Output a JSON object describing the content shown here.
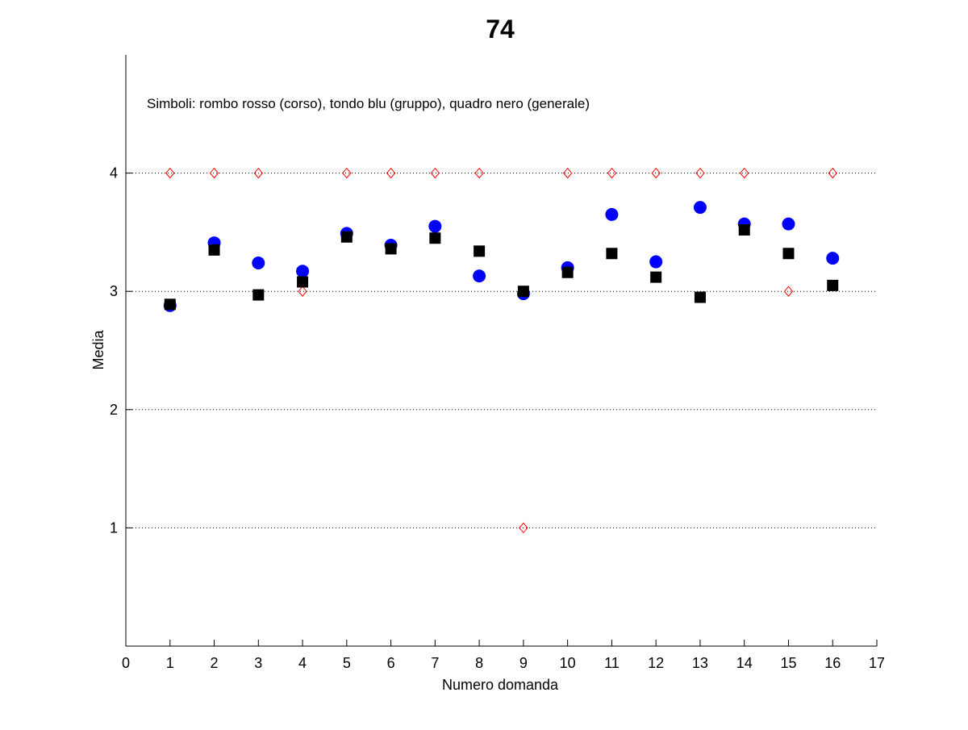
{
  "chart_data": {
    "type": "scatter",
    "title": "74",
    "xlabel": "Numero domanda",
    "ylabel": "Media",
    "xlim": [
      0,
      17
    ],
    "ylim": [
      0,
      5
    ],
    "xticks": [
      "0",
      "1",
      "2",
      "3",
      "4",
      "5",
      "6",
      "7",
      "8",
      "9",
      "10",
      "11",
      "12",
      "13",
      "14",
      "15",
      "16",
      "17"
    ],
    "yticks": [
      "1",
      "2",
      "3",
      "4"
    ],
    "grid": "horizontal dotted at y ticks",
    "annotation": "Simboli: rombo rosso (corso), tondo blu (gruppo), quadro nero (generale)",
    "x": [
      1,
      2,
      3,
      4,
      5,
      6,
      7,
      8,
      9,
      10,
      11,
      12,
      13,
      14,
      15,
      16
    ],
    "series": [
      {
        "name": "corso",
        "marker": "diamond",
        "color": "#ff0000",
        "values": [
          4,
          4,
          4,
          3,
          4,
          4,
          4,
          4,
          1,
          4,
          4,
          4,
          4,
          4,
          3,
          4
        ]
      },
      {
        "name": "gruppo",
        "marker": "circle",
        "color": "#0000ff",
        "values": [
          2.88,
          3.41,
          3.24,
          3.17,
          3.49,
          3.39,
          3.55,
          3.13,
          2.98,
          3.2,
          3.65,
          3.25,
          3.71,
          3.57,
          3.57,
          3.28
        ]
      },
      {
        "name": "generale",
        "marker": "square",
        "color": "#000000",
        "values": [
          2.89,
          3.35,
          2.97,
          3.08,
          3.46,
          3.36,
          3.45,
          3.34,
          3.0,
          3.16,
          3.32,
          3.12,
          2.95,
          3.52,
          3.32,
          3.05
        ]
      }
    ]
  }
}
